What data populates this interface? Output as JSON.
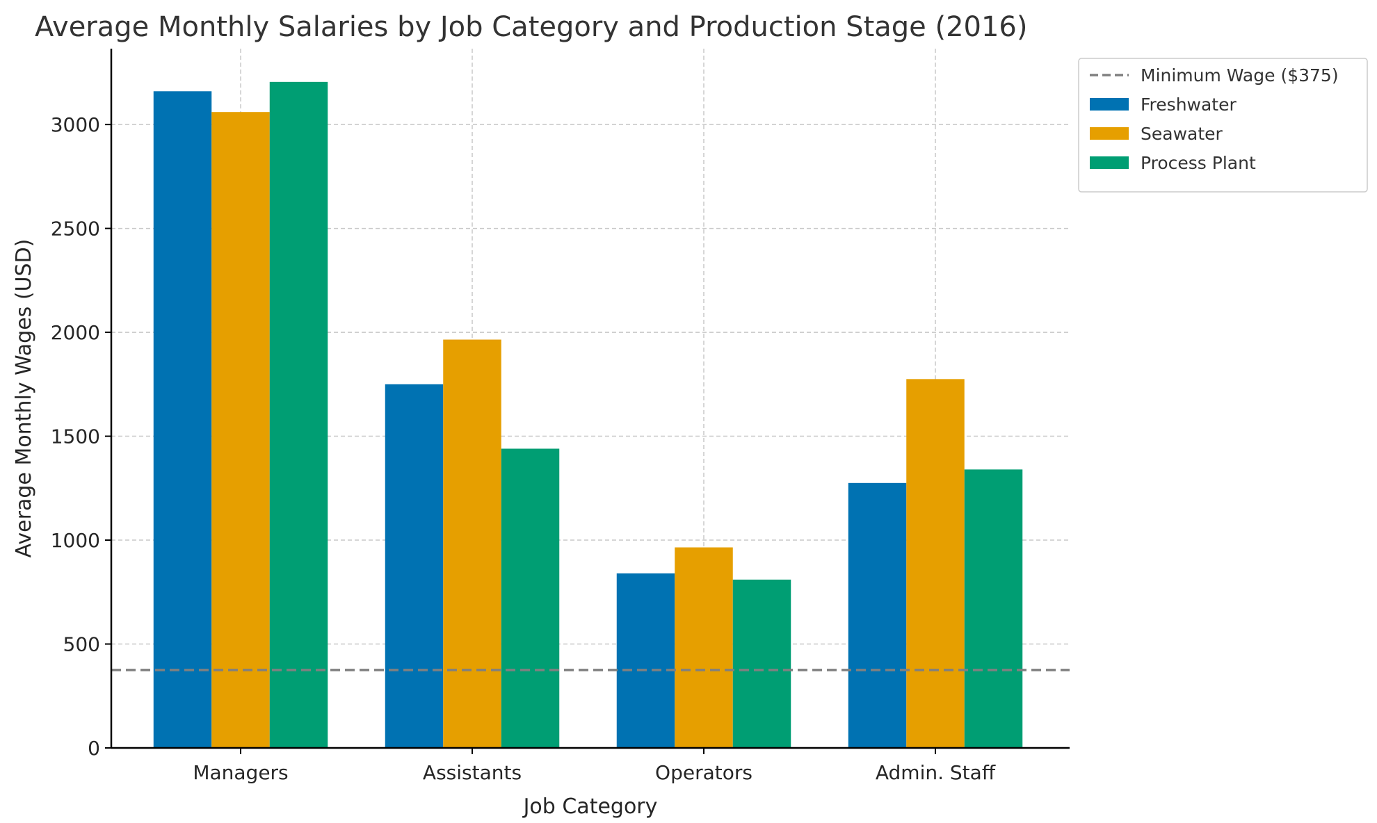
{
  "chart_data": {
    "type": "bar",
    "title": "Average Monthly Salaries by Job Category and Production Stage (2016)",
    "xlabel": "Job Category",
    "ylabel": "Average Monthly Wages (USD)",
    "categories": [
      "Managers",
      "Assistants",
      "Operators",
      "Admin. Staff"
    ],
    "series": [
      {
        "name": "Freshwater",
        "color": "#0072B2",
        "values": [
          3160,
          1750,
          840,
          1275
        ]
      },
      {
        "name": "Seawater",
        "color": "#E69F00",
        "values": [
          3060,
          1965,
          965,
          1775
        ]
      },
      {
        "name": "Process Plant",
        "color": "#009E73",
        "values": [
          3205,
          1440,
          810,
          1340
        ]
      }
    ],
    "reference_line": {
      "name": "Minimum Wage ($375)",
      "value": 375,
      "color": "#808080",
      "style": "dashed"
    },
    "ylim": [
      0,
      3365
    ],
    "yticks": [
      0,
      500,
      1000,
      1500,
      2000,
      2500,
      3000
    ],
    "grid": true,
    "legend_position": "outside-top-right"
  }
}
